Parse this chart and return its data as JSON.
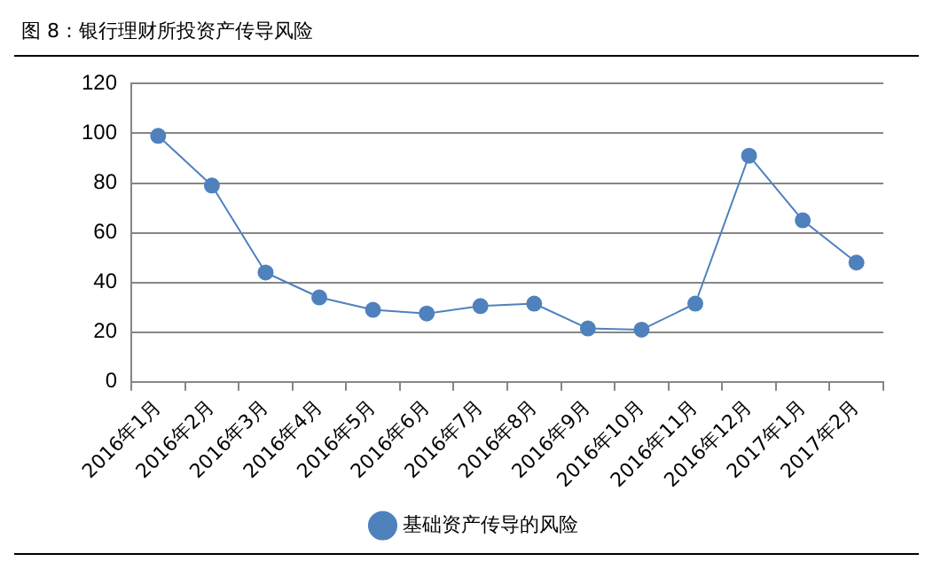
{
  "chart_data": {
    "type": "line",
    "title": "图 8：银行理财所投资产传导风险",
    "categories": [
      "2016年1月",
      "2016年2月",
      "2016年3月",
      "2016年4月",
      "2016年5月",
      "2016年6月",
      "2016年7月",
      "2016年8月",
      "2016年9月",
      "2016年10月",
      "2016年11月",
      "2016年12月",
      "2017年1月",
      "2017年2月"
    ],
    "series": [
      {
        "name": "基础资产传导的风险",
        "color": "#4f81bd",
        "values": [
          99,
          79,
          44,
          34,
          29,
          27.5,
          30.5,
          31.5,
          21.5,
          21,
          31.5,
          91,
          65,
          48
        ]
      }
    ],
    "ylim": [
      0,
      120
    ],
    "yticks": [
      0,
      20,
      40,
      60,
      80,
      100,
      120
    ],
    "grid": "y",
    "legend": "bottom",
    "marker": "circle",
    "line_style": "solid"
  }
}
